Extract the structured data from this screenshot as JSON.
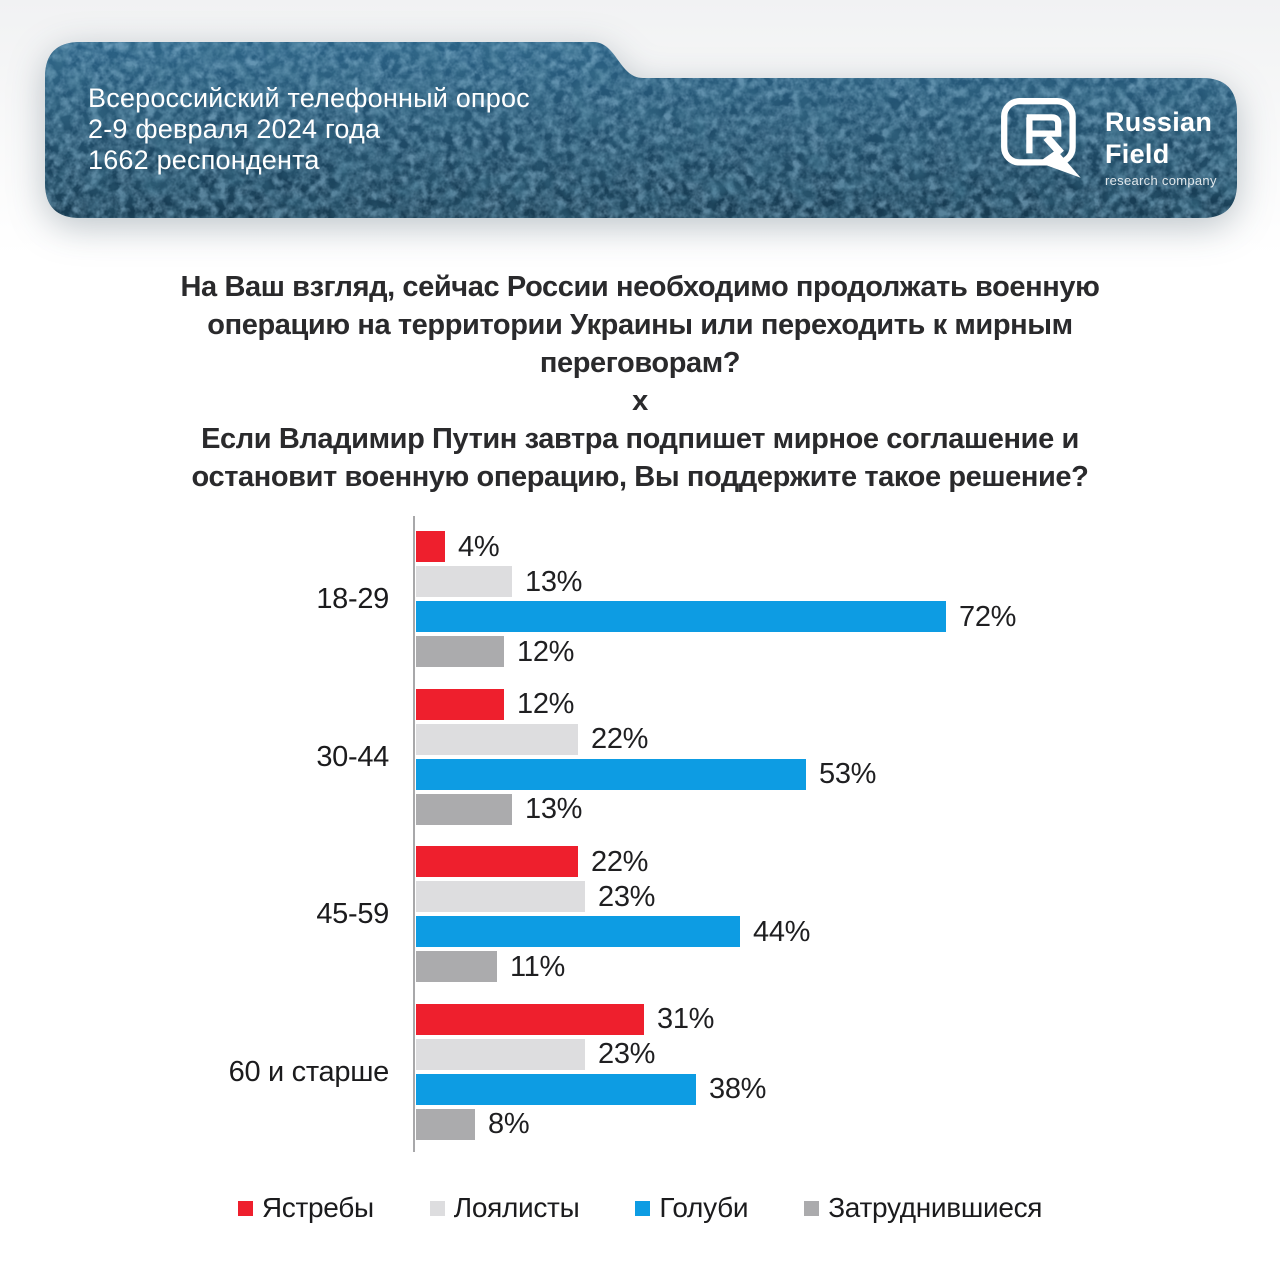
{
  "banner": {
    "line1": "Всероссийский телефонный опрос",
    "line2": "2-9 февраля 2024 года",
    "line3": "1662 респондента",
    "logo": {
      "name_line1": "Russian",
      "name_line2": "Field",
      "tagline": "research company"
    }
  },
  "question": {
    "lines": [
      "На Ваш взгляд, сейчас России необходимо продолжать военную",
      "операцию на территории Украины или переходить к мирным",
      "переговорам?",
      "х",
      "Если Владимир Путин завтра подпишет мирное соглашение и",
      "остановит военную операцию, Вы поддержите такое решение?"
    ]
  },
  "chart_data": {
    "type": "bar",
    "orientation": "horizontal",
    "categories": [
      "18-29",
      "30-44",
      "45-59",
      "60 и старше"
    ],
    "series": [
      {
        "name": "Ястребы",
        "color": "#ee1f2d",
        "values": [
          4,
          12,
          22,
          31
        ]
      },
      {
        "name": "Лоялисты",
        "color": "#dddddf",
        "values": [
          13,
          22,
          23,
          23
        ]
      },
      {
        "name": "Голуби",
        "color": "#0d9ce3",
        "values": [
          72,
          53,
          44,
          38
        ]
      },
      {
        "name": "Затруднившиеся",
        "color": "#ababad",
        "values": [
          12,
          13,
          11,
          8
        ]
      }
    ],
    "value_suffix": "%",
    "xlim": [
      0,
      100
    ],
    "grid": false,
    "legend_position": "bottom"
  },
  "colors": {
    "banner_bg_top": "#2b6286",
    "banner_bg_bottom": "#16394f",
    "banner_texture": "#4e8cb8",
    "banner_text": "#ffffff",
    "axis": "#a8a8aa",
    "text": "#1e1e20",
    "page_bg": "#ffffff"
  }
}
